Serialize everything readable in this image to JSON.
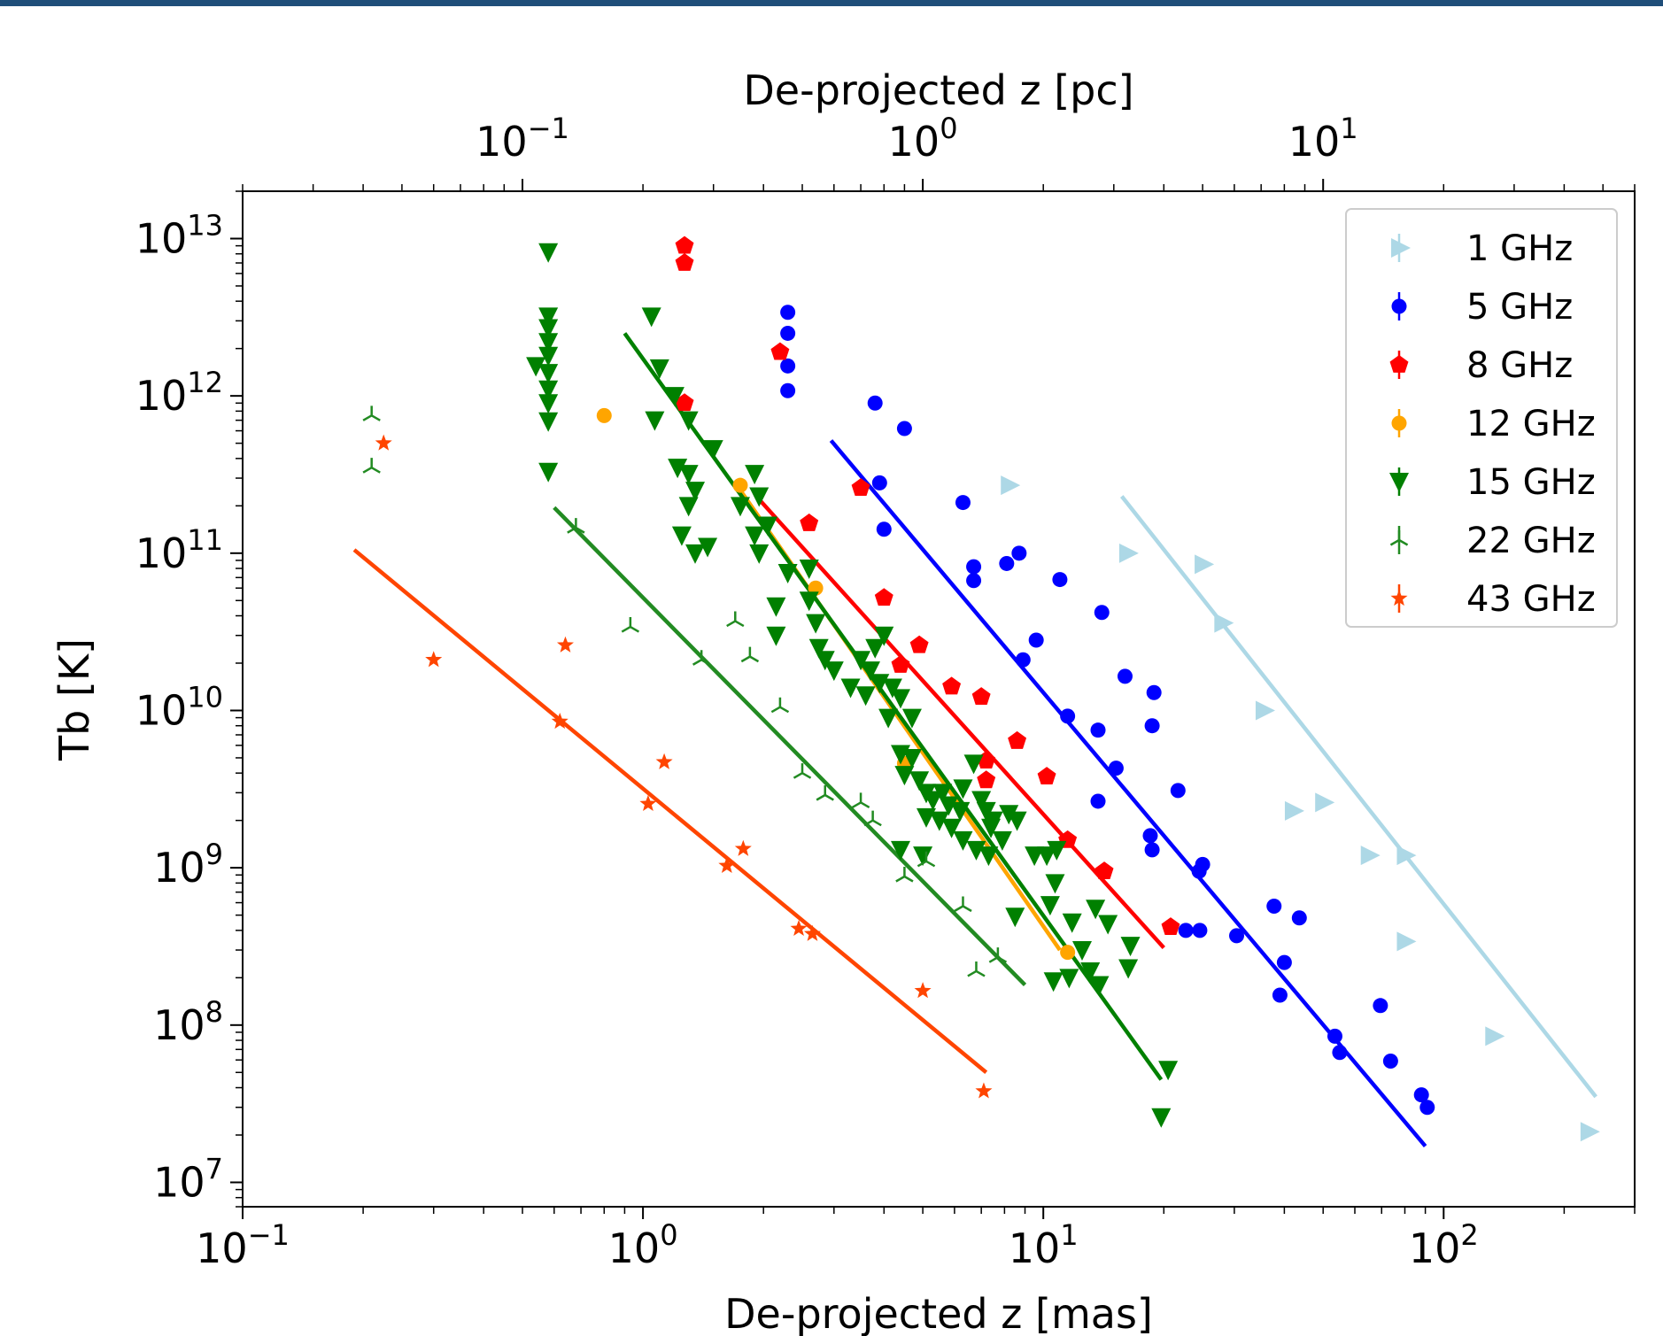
{
  "chart_data": {
    "type": "scatter",
    "xlabel": "De-projected z [mas]",
    "ylabel": "Tb [K]",
    "top_xlabel": "De-projected z [pc]",
    "xscale": "log",
    "yscale": "log",
    "xlim": [
      0.1,
      300
    ],
    "ylim": [
      7000000,
      20000000000000
    ],
    "top_xlim": [
      0.02,
      60
    ],
    "x_ticks": [
      {
        "value": 0.1,
        "base": "10",
        "exp": "−1"
      },
      {
        "value": 1,
        "base": "10",
        "exp": "0"
      },
      {
        "value": 10,
        "base": "10",
        "exp": "1"
      },
      {
        "value": 100,
        "base": "10",
        "exp": "2"
      }
    ],
    "top_ticks": [
      {
        "value": 0.1,
        "base": "10",
        "exp": "−1"
      },
      {
        "value": 1,
        "base": "10",
        "exp": "0"
      },
      {
        "value": 10,
        "base": "10",
        "exp": "1"
      }
    ],
    "y_ticks": [
      {
        "value": 10000000,
        "base": "10",
        "exp": "7"
      },
      {
        "value": 100000000,
        "base": "10",
        "exp": "8"
      },
      {
        "value": 1000000000,
        "base": "10",
        "exp": "9"
      },
      {
        "value": 10000000000,
        "base": "10",
        "exp": "10"
      },
      {
        "value": 100000000000,
        "base": "10",
        "exp": "11"
      },
      {
        "value": 1000000000000,
        "base": "10",
        "exp": "12"
      },
      {
        "value": 10000000000000,
        "base": "10",
        "exp": "13"
      }
    ],
    "legend_position": "upper right",
    "series": [
      {
        "name": "1 GHz",
        "color": "#add8e6",
        "marker": "triangle-right",
        "points": [
          [
            8.2,
            270000000000.0
          ],
          [
            16.2,
            100000000000.0
          ],
          [
            25,
            85000000000.0
          ],
          [
            28,
            36000000000.0
          ],
          [
            35.5,
            10000000000.0
          ],
          [
            42,
            2300000000.0
          ],
          [
            50,
            2600000000.0
          ],
          [
            65,
            1200000000.0
          ],
          [
            80,
            1200000000.0
          ],
          [
            80,
            340000000.0
          ],
          [
            133,
            85000000.0
          ],
          [
            230,
            21000000.0
          ]
        ],
        "fit": [
          [
            15.7,
            230000000000.0
          ],
          [
            240,
            35000000.0
          ]
        ]
      },
      {
        "name": "5 GHz",
        "color": "#0000ff",
        "marker": "circle",
        "points": [
          [
            2.3,
            3400000000000.0
          ],
          [
            2.3,
            2500000000000.0
          ],
          [
            2.3,
            1550000000000.0
          ],
          [
            2.3,
            1080000000000.0
          ],
          [
            3.8,
            900000000000.0
          ],
          [
            4.5,
            620000000000.0
          ],
          [
            3.9,
            280000000000.0
          ],
          [
            4,
            142000000000.0
          ],
          [
            6.3,
            210000000000.0
          ],
          [
            6.7,
            82000000000.0
          ],
          [
            6.7,
            67000000000.0
          ],
          [
            8.1,
            86000000000.0
          ],
          [
            8.7,
            100000000000.0
          ],
          [
            11,
            68000000000.0
          ],
          [
            9.6,
            28000000000.0
          ],
          [
            8.9,
            21000000000.0
          ],
          [
            11.5,
            9200000000.0
          ],
          [
            14,
            42000000000.0
          ],
          [
            16,
            16500000000.0
          ],
          [
            18.9,
            13000000000.0
          ],
          [
            13.7,
            7500000000.0
          ],
          [
            15.2,
            4300000000.0
          ],
          [
            18.7,
            8000000000.0
          ],
          [
            13.7,
            2650000000.0
          ],
          [
            21.7,
            3100000000.0
          ],
          [
            18.5,
            1600000000.0
          ],
          [
            18.7,
            1300000000.0
          ],
          [
            25,
            1050000000.0
          ],
          [
            24.5,
            950000000.0
          ],
          [
            22.7,
            400000000.0
          ],
          [
            24.6,
            400000000.0
          ],
          [
            30.4,
            370000000.0
          ],
          [
            37.7,
            570000000.0
          ],
          [
            40,
            250000000.0
          ],
          [
            39,
            155000000.0
          ],
          [
            43.6,
            480000000.0
          ],
          [
            53.5,
            85000000.0
          ],
          [
            55,
            67000000.0
          ],
          [
            69.5,
            133000000.0
          ],
          [
            73.7,
            59000000.0
          ],
          [
            88,
            36000000.0
          ],
          [
            91,
            30000000.0
          ]
        ],
        "fit": [
          [
            2.95,
            520000000000.0
          ],
          [
            90,
            17000000.0
          ]
        ]
      },
      {
        "name": "8 GHz",
        "color": "#ff0000",
        "marker": "pentagon",
        "points": [
          [
            1.27,
            9000000000000.0
          ],
          [
            1.27,
            7000000000000.0
          ],
          [
            2.2,
            1900000000000.0
          ],
          [
            1.27,
            900000000000.0
          ],
          [
            2.6,
            155000000000.0
          ],
          [
            3.5,
            260000000000.0
          ],
          [
            4,
            52000000000.0
          ],
          [
            4.9,
            26000000000.0
          ],
          [
            4.4,
            19500000000.0
          ],
          [
            5.9,
            14200000000.0
          ],
          [
            7,
            12200000000.0
          ],
          [
            8.6,
            6400000000.0
          ],
          [
            7.2,
            4800000000.0
          ],
          [
            7.2,
            3600000000.0
          ],
          [
            10.2,
            3800000000.0
          ],
          [
            11.5,
            1500000000.0
          ],
          [
            14.2,
            950000000.0
          ],
          [
            20.8,
            420000000.0
          ]
        ],
        "fit": [
          [
            1.95,
            220000000000.0
          ],
          [
            20,
            310000000.0
          ]
        ]
      },
      {
        "name": "12 GHz",
        "color": "#ffa500",
        "marker": "circle",
        "points": [
          [
            0.8,
            750000000000.0
          ],
          [
            1.75,
            270000000000.0
          ],
          [
            2.7,
            60000000000.0
          ],
          [
            4.5,
            4600000000.0
          ],
          [
            11.5,
            290000000.0
          ]
        ],
        "fit": [
          [
            1.7,
            280000000000.0
          ],
          [
            11,
            300000000.0
          ]
        ]
      },
      {
        "name": "15 GHz",
        "color": "#008000",
        "marker": "triangle-down",
        "points": [
          [
            0.58,
            8200000000000.0
          ],
          [
            0.58,
            3200000000000.0
          ],
          [
            0.58,
            2700000000000.0
          ],
          [
            0.58,
            2200000000000.0
          ],
          [
            0.58,
            1800000000000.0
          ],
          [
            0.58,
            1400000000000.0
          ],
          [
            0.54,
            1550000000000.0
          ],
          [
            0.58,
            1100000000000.0
          ],
          [
            0.58,
            900000000000.0
          ],
          [
            0.58,
            690000000000.0
          ],
          [
            0.58,
            330000000000.0
          ],
          [
            1.05,
            3200000000000.0
          ],
          [
            1.1,
            1500000000000.0
          ],
          [
            1.2,
            1000000000000.0
          ],
          [
            1.07,
            700000000000.0
          ],
          [
            1.3,
            700000000000.0
          ],
          [
            1.5,
            460000000000.0
          ],
          [
            1.22,
            350000000000.0
          ],
          [
            1.3,
            320000000000.0
          ],
          [
            1.35,
            250000000000.0
          ],
          [
            1.3,
            200000000000.0
          ],
          [
            1.25,
            130000000000.0
          ],
          [
            1.45,
            110000000000.0
          ],
          [
            1.35,
            100000000000.0
          ],
          [
            1.9,
            320000000000.0
          ],
          [
            1.95,
            230000000000.0
          ],
          [
            2.05,
            150000000000.0
          ],
          [
            1.75,
            200000000000.0
          ],
          [
            1.9,
            130000000000.0
          ],
          [
            1.95,
            100000000000.0
          ],
          [
            2.3,
            75000000000.0
          ],
          [
            2.6,
            80000000000.0
          ],
          [
            2.15,
            46000000000.0
          ],
          [
            2.15,
            30000000000.0
          ],
          [
            2.6,
            50000000000.0
          ],
          [
            2.7,
            36000000000.0
          ],
          [
            2.75,
            25000000000.0
          ],
          [
            2.85,
            21000000000.0
          ],
          [
            3,
            18000000000.0
          ],
          [
            3.3,
            14000000000.0
          ],
          [
            3.6,
            12500000000.0
          ],
          [
            3.5,
            21000000000.0
          ],
          [
            3.8,
            25000000000.0
          ],
          [
            3.7,
            18000000000.0
          ],
          [
            4,
            30000000000.0
          ],
          [
            3.9,
            15000000000.0
          ],
          [
            4.2,
            14000000000.0
          ],
          [
            4.4,
            12000000000.0
          ],
          [
            4.1,
            9000000000.0
          ],
          [
            4.7,
            9000000000.0
          ],
          [
            4.4,
            5300000000.0
          ],
          [
            4.7,
            5000000000.0
          ],
          [
            4.5,
            3900000000.0
          ],
          [
            4.9,
            3600000000.0
          ],
          [
            5.1,
            3000000000.0
          ],
          [
            5.6,
            3000000000.0
          ],
          [
            5.3,
            2700000000.0
          ],
          [
            5.8,
            2500000000.0
          ],
          [
            6.2,
            2300000000.0
          ],
          [
            6.7,
            4600000000.0
          ],
          [
            6.3,
            3200000000.0
          ],
          [
            7,
            2700000000.0
          ],
          [
            7.2,
            2300000000.0
          ],
          [
            7.5,
            2000000000.0
          ],
          [
            5.1,
            2100000000.0
          ],
          [
            5.5,
            2000000000.0
          ],
          [
            5.9,
            1800000000.0
          ],
          [
            6.3,
            1500000000.0
          ],
          [
            6.8,
            1300000000.0
          ],
          [
            7.4,
            1800000000.0
          ],
          [
            7.9,
            1500000000.0
          ],
          [
            8.2,
            2200000000.0
          ],
          [
            8.6,
            2000000000.0
          ],
          [
            4.4,
            1300000000.0
          ],
          [
            5,
            1200000000.0
          ],
          [
            7.3,
            1200000000.0
          ],
          [
            8.5,
            490000000.0
          ],
          [
            9.5,
            1200000000.0
          ],
          [
            10.2,
            1200000000.0
          ],
          [
            10.8,
            1300000000.0
          ],
          [
            10.7,
            800000000.0
          ],
          [
            10.4,
            580000000.0
          ],
          [
            11.8,
            450000000.0
          ],
          [
            12.5,
            300000000.0
          ],
          [
            13.5,
            550000000.0
          ],
          [
            14.5,
            440000000.0
          ],
          [
            13.1,
            220000000.0
          ],
          [
            10.6,
            190000000.0
          ],
          [
            11.6,
            200000000.0
          ],
          [
            13.8,
            180000000.0
          ],
          [
            16.5,
            320000000.0
          ],
          [
            16.3,
            230000000.0
          ],
          [
            20.5,
            52000000.0
          ],
          [
            19.7,
            26000000.0
          ]
        ],
        "fit": [
          [
            0.9,
            2500000000000.0
          ],
          [
            19.7,
            45000000.0
          ]
        ]
      },
      {
        "name": "22 GHz",
        "color": "#228b22",
        "marker": "tri-up",
        "points": [
          [
            0.21,
            750000000000.0
          ],
          [
            0.21,
            350000000000.0
          ],
          [
            0.68,
            145000000000.0
          ],
          [
            0.93,
            34000000000.0
          ],
          [
            1.4,
            21000000000.0
          ],
          [
            1.7,
            37000000000.0
          ],
          [
            1.85,
            22000000000.0
          ],
          [
            2.2,
            10500000000.0
          ],
          [
            2.5,
            4000000000.0
          ],
          [
            2.85,
            2900000000.0
          ],
          [
            3.5,
            2600000000.0
          ],
          [
            3.75,
            2000000000.0
          ],
          [
            4.5,
            880000000.0
          ],
          [
            5.1,
            1100000000.0
          ],
          [
            6.3,
            570000000.0
          ],
          [
            6.8,
            220000000.0
          ],
          [
            7.7,
            270000000.0
          ]
        ],
        "fit": [
          [
            0.6,
            195000000000.0
          ],
          [
            9,
            180000000.0
          ]
        ]
      },
      {
        "name": "43 GHz",
        "color": "#ff4500",
        "marker": "star",
        "points": [
          [
            0.225,
            500000000000.0
          ],
          [
            0.3,
            21000000000.0
          ],
          [
            0.62,
            8500000000.0
          ],
          [
            0.64,
            26000000000.0
          ],
          [
            1.03,
            2550000000.0
          ],
          [
            1.13,
            4700000000.0
          ],
          [
            1.62,
            1030000000.0
          ],
          [
            1.78,
            1320000000.0
          ],
          [
            2.45,
            410000000.0
          ],
          [
            2.65,
            380000000.0
          ],
          [
            5,
            165000000.0
          ],
          [
            7.1,
            38000000.0
          ]
        ],
        "fit": [
          [
            0.19,
            105000000000.0
          ],
          [
            7.2,
            50000000.0
          ]
        ]
      }
    ]
  }
}
